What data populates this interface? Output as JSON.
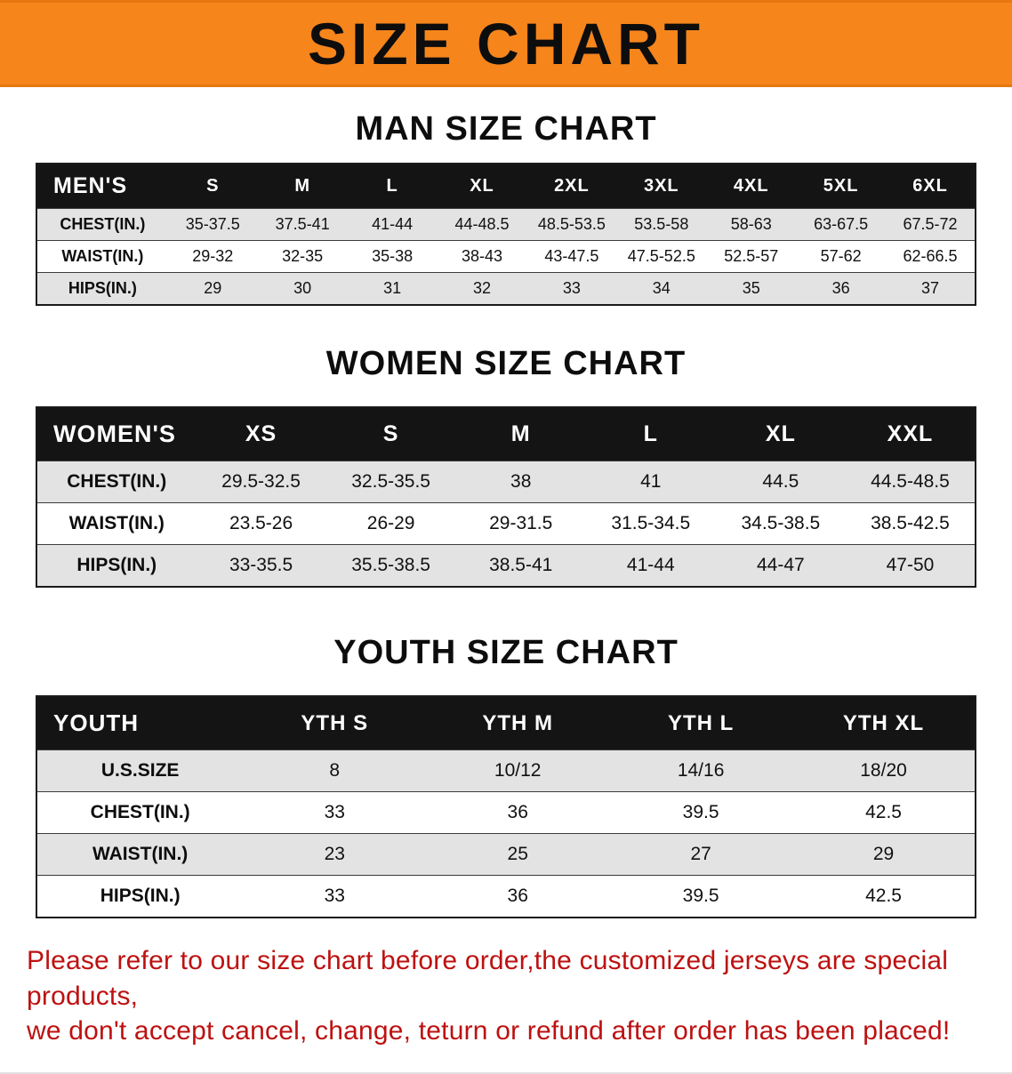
{
  "banner": {
    "title": "SIZE CHART",
    "bg_color": "#F6851C",
    "text_color": "#0D0D0D"
  },
  "sections": [
    {
      "heading": "MAN SIZE CHART",
      "table": {
        "label": "MEN'S",
        "columns": [
          "S",
          "M",
          "L",
          "XL",
          "2XL",
          "3XL",
          "4XL",
          "5XL",
          "6XL"
        ],
        "rows": [
          {
            "label": "CHEST(IN.)",
            "values": [
              "35-37.5",
              "37.5-41",
              "41-44",
              "44-48.5",
              "48.5-53.5",
              "53.5-58",
              "58-63",
              "63-67.5",
              "67.5-72"
            ]
          },
          {
            "label": "WAIST(IN.)",
            "values": [
              "29-32",
              "32-35",
              "35-38",
              "38-43",
              "43-47.5",
              "47.5-52.5",
              "52.5-57",
              "57-62",
              "62-66.5"
            ]
          },
          {
            "label": "HIPS(IN.)",
            "values": [
              "29",
              "30",
              "31",
              "32",
              "33",
              "34",
              "35",
              "36",
              "37"
            ]
          }
        ]
      }
    },
    {
      "heading": "WOMEN SIZE CHART",
      "table": {
        "label": "WOMEN'S",
        "columns": [
          "XS",
          "S",
          "M",
          "L",
          "XL",
          "XXL"
        ],
        "rows": [
          {
            "label": "CHEST(IN.)",
            "values": [
              "29.5-32.5",
              "32.5-35.5",
              "38",
              "41",
              "44.5",
              "44.5-48.5"
            ]
          },
          {
            "label": "WAIST(IN.)",
            "values": [
              "23.5-26",
              "26-29",
              "29-31.5",
              "31.5-34.5",
              "34.5-38.5",
              "38.5-42.5"
            ]
          },
          {
            "label": "HIPS(IN.)",
            "values": [
              "33-35.5",
              "35.5-38.5",
              "38.5-41",
              "41-44",
              "44-47",
              "47-50"
            ]
          }
        ]
      }
    },
    {
      "heading": "YOUTH SIZE CHART",
      "table": {
        "label": "YOUTH",
        "columns": [
          "YTH S",
          "YTH M",
          "YTH L",
          "YTH XL"
        ],
        "rows": [
          {
            "label": "U.S.SIZE",
            "values": [
              "8",
              "10/12",
              "14/16",
              "18/20"
            ]
          },
          {
            "label": "CHEST(IN.)",
            "values": [
              "33",
              "36",
              "39.5",
              "42.5"
            ]
          },
          {
            "label": "WAIST(IN.)",
            "values": [
              "23",
              "25",
              "27",
              "29"
            ]
          },
          {
            "label": "HIPS(IN.)",
            "values": [
              "33",
              "36",
              "39.5",
              "42.5"
            ]
          }
        ]
      }
    }
  ],
  "footer": {
    "lines": [
      "Please refer to our size chart before order,the customized jerseys are special products,",
      "we don't accept cancel, change, teturn or refund after order has been placed!"
    ],
    "text_color": "#BD1111"
  }
}
